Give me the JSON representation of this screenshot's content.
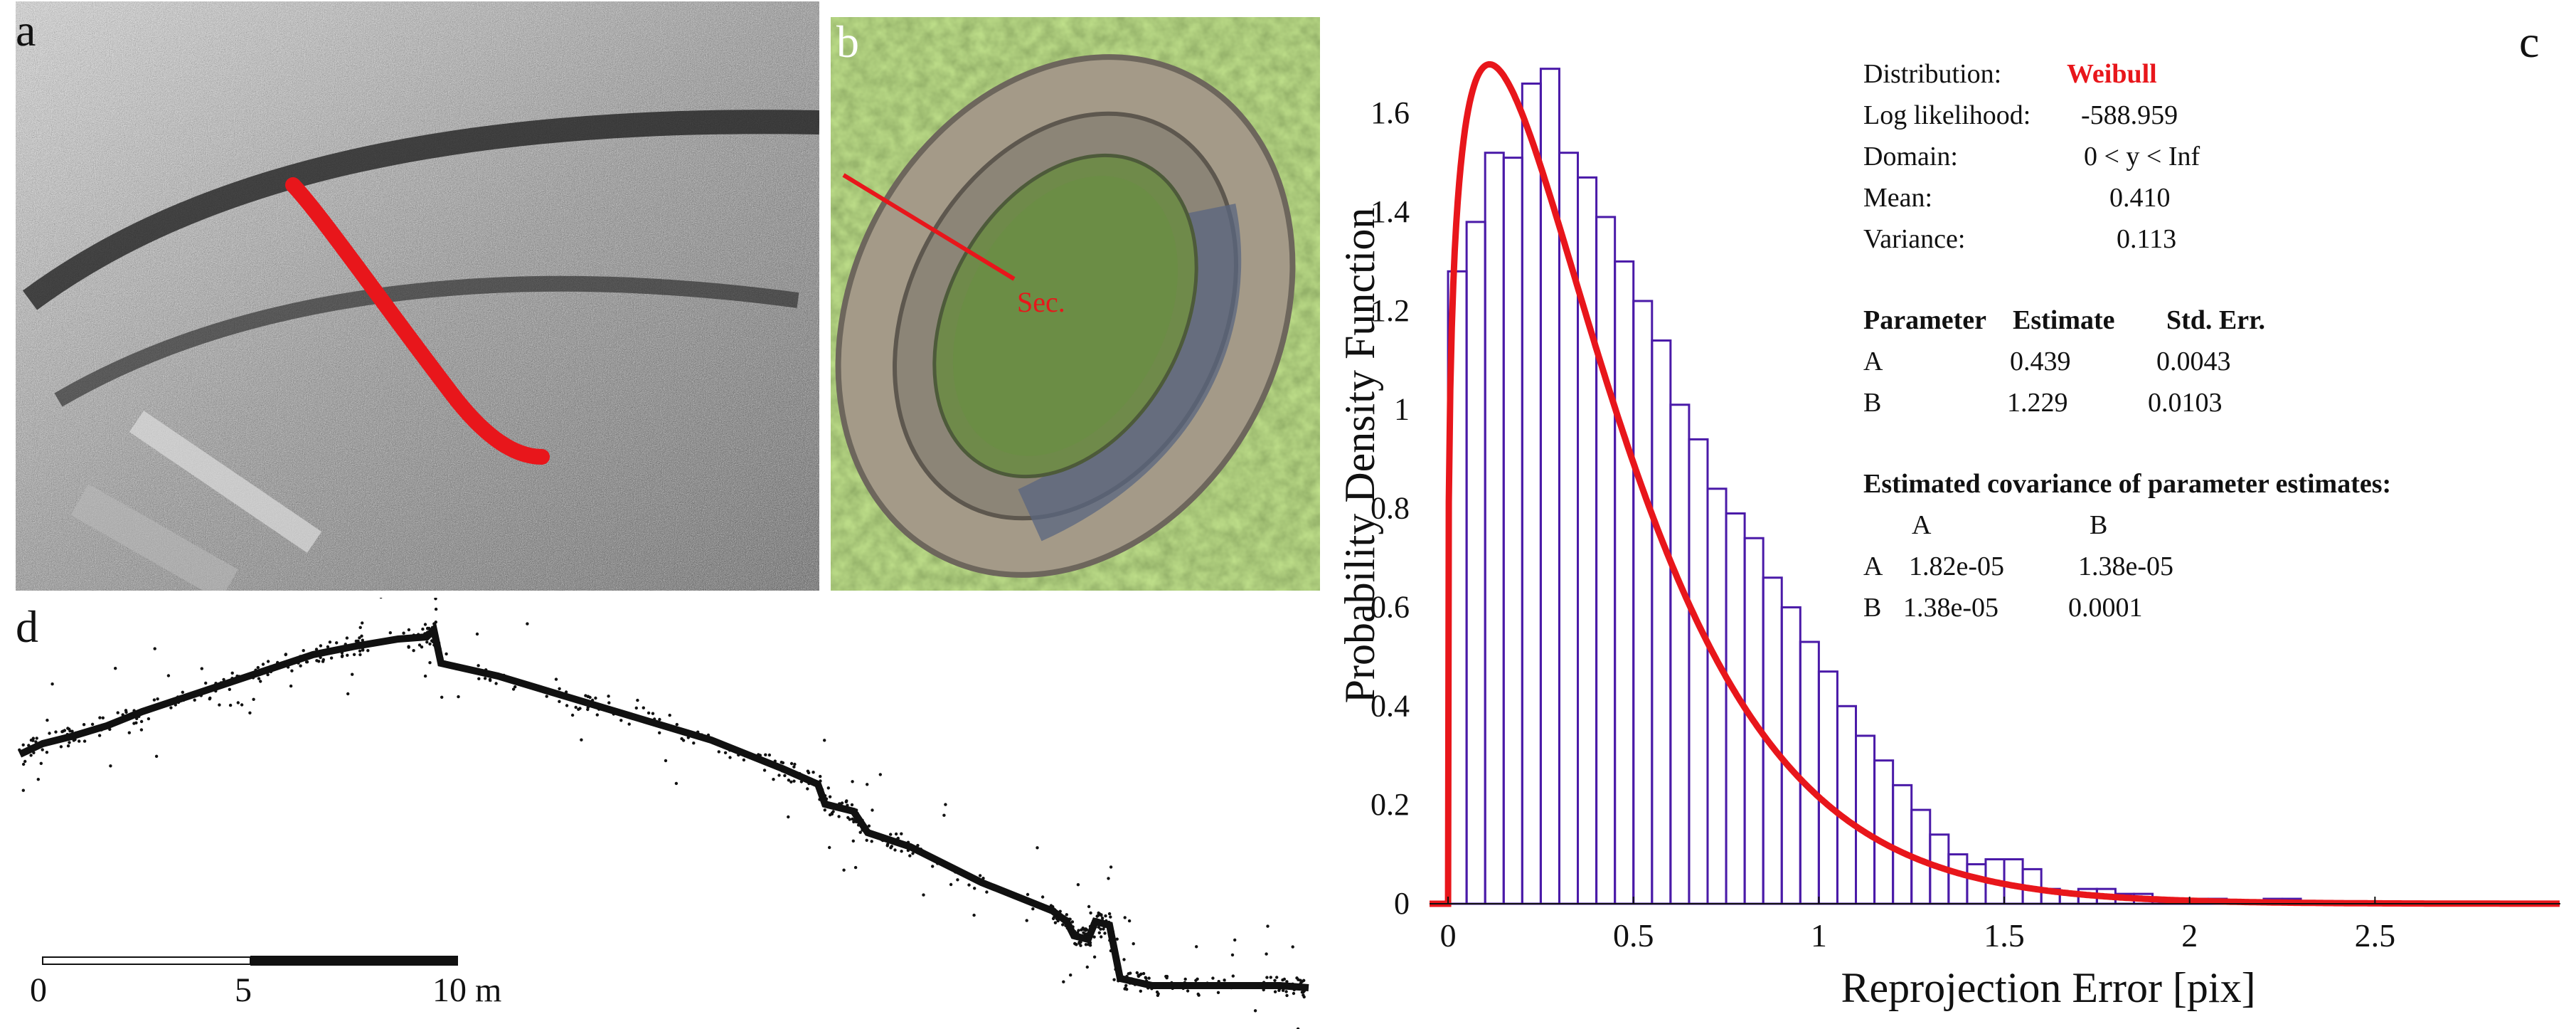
{
  "panels": {
    "a": {
      "label": "a"
    },
    "b": {
      "label": "b",
      "section_label": "Sec."
    },
    "c": {
      "label": "c"
    },
    "d": {
      "label": "d"
    }
  },
  "scale_bar": {
    "labels": [
      "0",
      "5",
      "10 m"
    ]
  },
  "colors": {
    "accent": "#e8161b",
    "bars": "#4a1aa8",
    "curve": "#e8161b"
  },
  "stats": {
    "distribution_label": "Distribution:",
    "distribution_value": "Weibull",
    "loglik_label": "Log likelihood:",
    "loglik_value": "-588.959",
    "domain_label": "Domain:",
    "domain_value": "0 < y < Inf",
    "mean_label": "Mean:",
    "mean_value": "0.410",
    "variance_label": "Variance:",
    "variance_value": "0.113",
    "param_header": [
      "Parameter",
      "Estimate",
      "Std. Err."
    ],
    "params": [
      {
        "name": "A",
        "estimate": "0.439",
        "stderr": "0.0043"
      },
      {
        "name": "B",
        "estimate": "1.229",
        "stderr": "0.0103"
      }
    ],
    "cov_title": "Estimated covariance of parameter estimates:",
    "cov_cols": [
      "A",
      "B"
    ],
    "cov_rows": [
      {
        "name": "A",
        "values": [
          "1.82e-05",
          "1.38e-05"
        ]
      },
      {
        "name": "B",
        "values": [
          "1.38e-05",
          "0.0001"
        ]
      }
    ]
  },
  "chart_data": {
    "type": "bar",
    "title": "",
    "xlabel": "Reprojection Error [pix]",
    "ylabel": "Probability Density Function",
    "xlim": [
      -0.05,
      3.0
    ],
    "ylim": [
      0,
      1.75
    ],
    "xticks": [
      0,
      0.5,
      1,
      1.5,
      2,
      2.5
    ],
    "xtick_labels": [
      "0",
      "0.5",
      "1",
      "1.5",
      "2",
      "2.5"
    ],
    "yticks": [
      0,
      0.2,
      0.4,
      0.6,
      0.8,
      1,
      1.2,
      1.4,
      1.6
    ],
    "ytick_labels": [
      "0",
      "0.2",
      "0.4",
      "0.6",
      "0.8",
      "1",
      "1.2",
      "1.4",
      "1.6"
    ],
    "bin_width": 0.05,
    "bin_start": 0,
    "histogram": [
      1.28,
      1.38,
      1.52,
      1.51,
      1.66,
      1.69,
      1.52,
      1.47,
      1.39,
      1.3,
      1.22,
      1.14,
      1.01,
      0.94,
      0.84,
      0.79,
      0.74,
      0.66,
      0.6,
      0.53,
      0.47,
      0.4,
      0.34,
      0.29,
      0.24,
      0.19,
      0.14,
      0.1,
      0.08,
      0.09,
      0.09,
      0.07,
      0.03,
      0.02,
      0.03,
      0.03,
      0.02,
      0.02,
      0.01,
      0.01,
      0.01,
      0.01,
      0.0,
      0.0,
      0.01,
      0.01,
      0.0,
      0.0,
      0.0,
      0.0,
      0.0,
      0.0,
      0.0,
      0.0,
      0.0,
      0.0,
      0.0,
      0.0
    ],
    "fit": {
      "name": "Weibull",
      "A": 0.439,
      "B": 1.229
    }
  }
}
